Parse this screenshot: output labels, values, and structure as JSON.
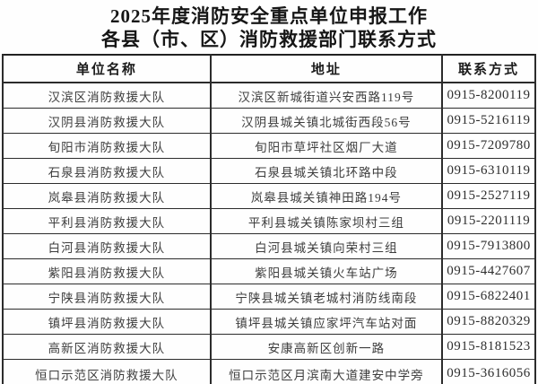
{
  "page": {
    "title_line1": "2025年度消防安全重点单位申报工作",
    "title_line2": "各县（市、区）消防救援部门联系方式"
  },
  "table": {
    "headers": {
      "name": "单位名称",
      "address": "地址",
      "contact": "联系方式"
    },
    "rows": [
      {
        "name": "汉滨区消防救援大队",
        "address": "汉滨区新城街道兴安西路119号",
        "phone": "0915-8200119"
      },
      {
        "name": "汉阴县消防救援大队",
        "address": "汉阴县城关镇北城街西段56号",
        "phone": "0915-5216119"
      },
      {
        "name": "旬阳市消防救援大队",
        "address": "旬阳市草坪社区烟厂大道",
        "phone": "0915-7209780"
      },
      {
        "name": "石泉县消防救援大队",
        "address": "石泉县城关镇北环路中段",
        "phone": "0915-6310119"
      },
      {
        "name": "岚皋县消防救援大队",
        "address": "岚皋县城关镇神田路194号",
        "phone": "0915-2527119"
      },
      {
        "name": "平利县消防救援大队",
        "address": "平利县城关镇陈家坝村三组",
        "phone": "0915-2201119"
      },
      {
        "name": "白河县消防救援大队",
        "address": "白河县城关镇向荣村三组",
        "phone": "0915-7913800"
      },
      {
        "name": "紫阳县消防救援大队",
        "address": "紫阳县城关镇火车站广场",
        "phone": "0915-4427607"
      },
      {
        "name": "宁陕县消防救援大队",
        "address": "宁陕县城关镇老城村消防线南段",
        "phone": "0915-6822401"
      },
      {
        "name": "镇坪县消防救援大队",
        "address": "镇坪县城关镇应家坪汽车站对面",
        "phone": "0915-8820329"
      },
      {
        "name": "高新区消防救援大队",
        "address": "安康高新区创新一路",
        "phone": "0915-8181523"
      },
      {
        "name": "恒口示范区消防救援大队",
        "address": "恒口示范区月滨南大道建安中学旁",
        "phone": "0915-3616056"
      }
    ]
  },
  "colors": {
    "background": "#fefefe",
    "border": "#222222",
    "title_text": "#161616",
    "body_text": "#3d3d3d"
  }
}
